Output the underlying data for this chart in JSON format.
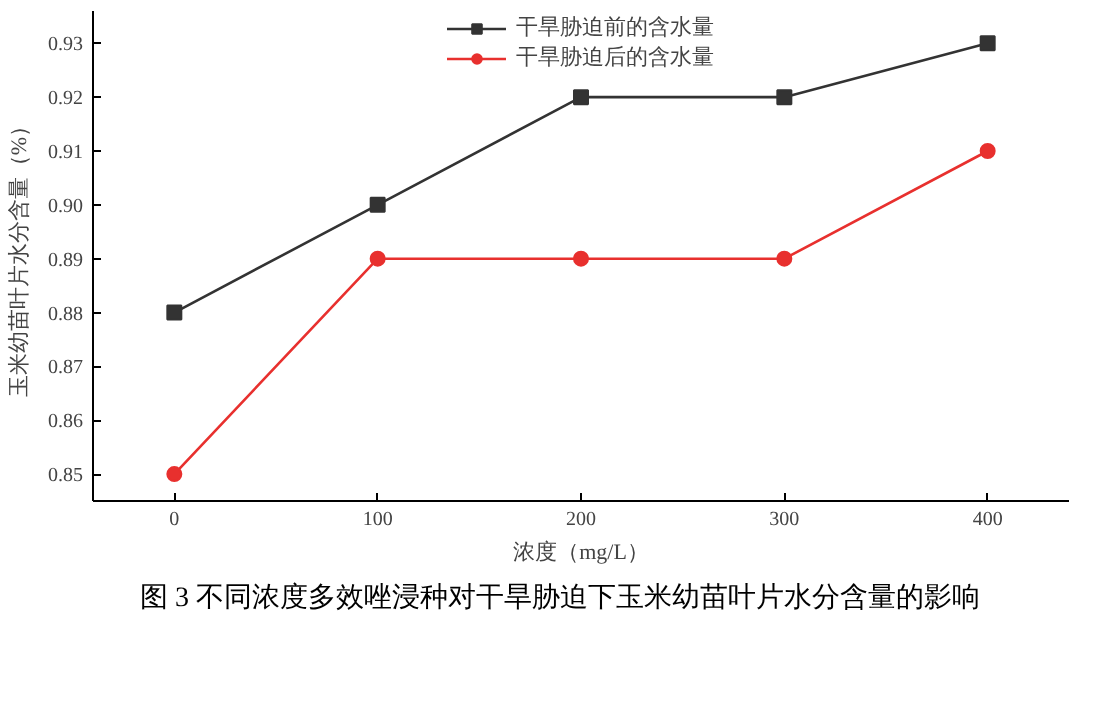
{
  "chart_data": {
    "type": "line",
    "xlabel": "浓度（mg/L）",
    "ylabel": "玉米幼苗叶片水分含量（%）",
    "x": [
      0,
      100,
      200,
      300,
      400
    ],
    "series": [
      {
        "name": "干旱胁迫前的含水量",
        "color": "#333333",
        "marker": "square",
        "values": [
          0.88,
          0.9,
          0.92,
          0.92,
          0.93
        ]
      },
      {
        "name": "干旱胁迫后的含水量",
        "color": "#e8302e",
        "marker": "circle",
        "values": [
          0.85,
          0.89,
          0.89,
          0.89,
          0.91
        ]
      }
    ],
    "xlim": [
      -40,
      440
    ],
    "xticks": [
      0,
      100,
      200,
      300,
      400
    ],
    "ylim": [
      0.845,
      0.936
    ],
    "yticks": [
      {
        "value": 0.85,
        "label": "0.85"
      },
      {
        "value": 0.86,
        "label": "0.86"
      },
      {
        "value": 0.87,
        "label": "0.87"
      },
      {
        "value": 0.88,
        "label": "0.88"
      },
      {
        "value": 0.89,
        "label": "0.89"
      },
      {
        "value": 0.9,
        "label": "0.90"
      },
      {
        "value": 0.91,
        "label": "0.91"
      },
      {
        "value": 0.92,
        "label": "0.92"
      },
      {
        "value": 0.93,
        "label": "0.93"
      }
    ],
    "grid": false,
    "legend": "top",
    "line_style": "solid",
    "annotations": [
      "图 3 不同浓度多效唑浸种对干旱胁迫下玉米幼苗叶片水分含量的影响"
    ]
  }
}
